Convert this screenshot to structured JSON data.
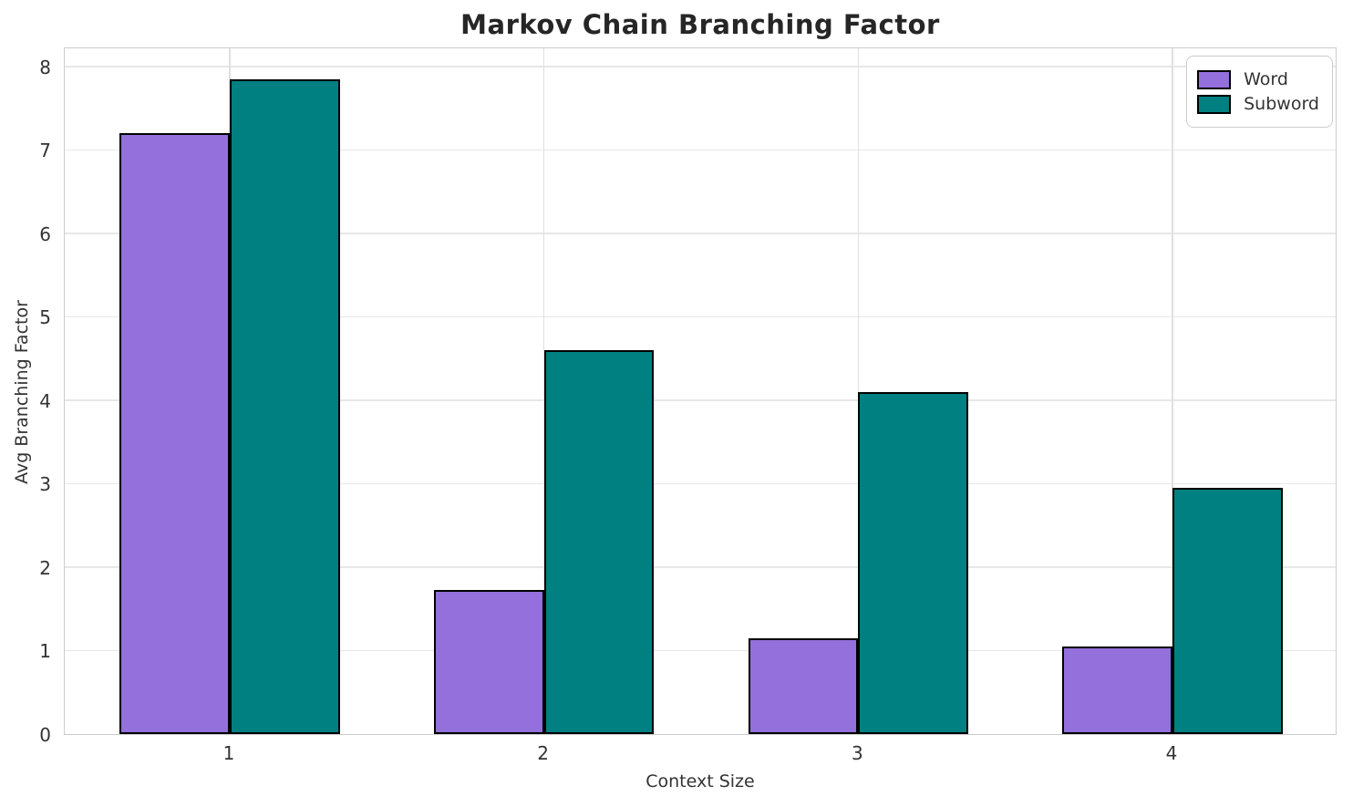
{
  "chart_data": {
    "type": "bar",
    "title": "Markov Chain Branching Factor",
    "xlabel": "Context Size",
    "ylabel": "Avg Branching Factor",
    "categories": [
      "1",
      "2",
      "3",
      "4"
    ],
    "series": [
      {
        "name": "Word",
        "color": "#9370DB",
        "values": [
          7.2,
          1.73,
          1.15,
          1.05
        ]
      },
      {
        "name": "Subword",
        "color": "#008080",
        "values": [
          7.85,
          4.6,
          4.1,
          2.95
        ]
      }
    ],
    "bar_edge_color": "#000000",
    "ylim": [
      0,
      8.24
    ],
    "yticks": [
      0,
      1,
      2,
      3,
      4,
      5,
      6,
      7,
      8
    ],
    "grid": "both",
    "grid_color": "#e7e7e7",
    "spine_color": "#cccccc",
    "legend_position": "upper right",
    "legend_labels": [
      "Word",
      "Subword"
    ],
    "title_color": "#262626",
    "tick_label_color": "#333333"
  }
}
